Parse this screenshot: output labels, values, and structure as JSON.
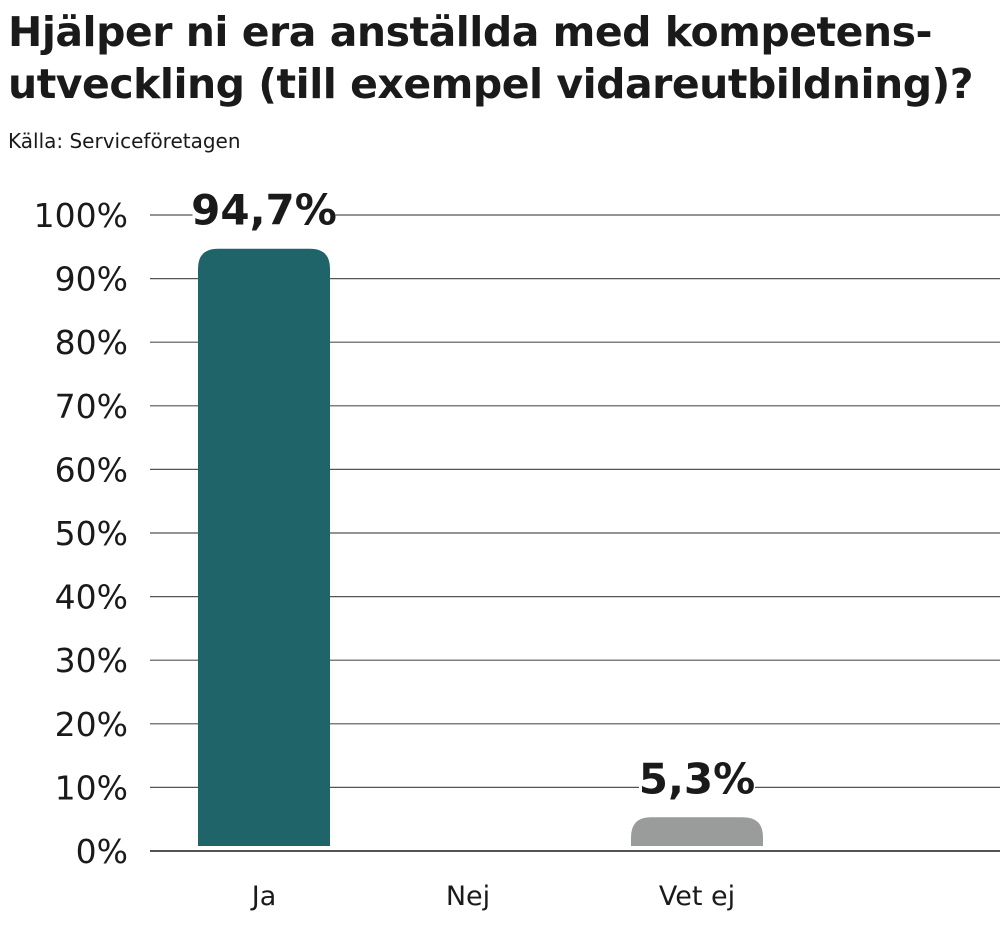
{
  "chart_data": {
    "type": "bar",
    "title": "Hjälper ni era anställda med kompetensutveckling (till exempel vidareutbildning)?",
    "title_lines": [
      "Hjälper ni era anställda med kompetens-",
      "utveckling (till exempel vidareutbildning)?"
    ],
    "source": "Källa: Serviceföretagen",
    "xlabel": "",
    "ylabel": "",
    "categories": [
      "Ja",
      "Nej",
      "Vet ej"
    ],
    "values": [
      94.7,
      0,
      5.3
    ],
    "data_labels": [
      "94,7%",
      "",
      "5,3%"
    ],
    "bar_colors": [
      "#1e6469",
      "#1e6469",
      "#999c9b"
    ],
    "ylim": [
      0,
      100
    ],
    "yticks": [
      0,
      10,
      20,
      30,
      40,
      50,
      60,
      70,
      80,
      90,
      100
    ],
    "ytick_labels": [
      "0%",
      "10%",
      "20%",
      "30%",
      "40%",
      "50%",
      "60%",
      "70%",
      "80%",
      "90%",
      "100%"
    ],
    "grid": true,
    "legend": "none"
  }
}
